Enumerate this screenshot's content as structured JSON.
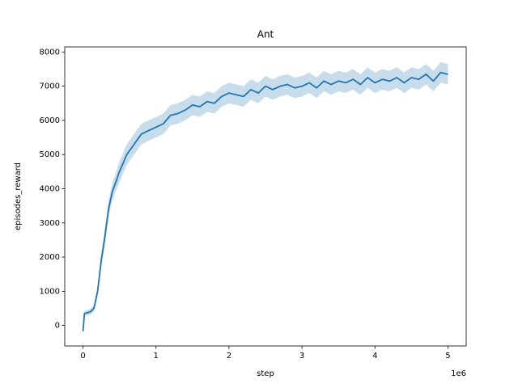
{
  "chart_data": {
    "type": "line",
    "title": "Ant",
    "x_label": "step",
    "y_label": "episodes_reward",
    "x_offset_label": "1e6",
    "x": [
      0,
      20000,
      100000,
      150000,
      200000,
      250000,
      300000,
      350000,
      400000,
      500000,
      600000,
      700000,
      800000,
      900000,
      1000000,
      1100000,
      1200000,
      1300000,
      1400000,
      1500000,
      1600000,
      1700000,
      1800000,
      1900000,
      2000000,
      2100000,
      2200000,
      2300000,
      2400000,
      2500000,
      2600000,
      2700000,
      2800000,
      2900000,
      3000000,
      3100000,
      3200000,
      3300000,
      3400000,
      3500000,
      3600000,
      3700000,
      3800000,
      3900000,
      4000000,
      4100000,
      4200000,
      4300000,
      4400000,
      4500000,
      4600000,
      4700000,
      4800000,
      4900000,
      5000000
    ],
    "series": [
      {
        "color": "#1f77b4",
        "values": [
          -170,
          350,
          400,
          500,
          1000,
          1900,
          2600,
          3400,
          3900,
          4500,
          5000,
          5300,
          5600,
          5700,
          5800,
          5900,
          6150,
          6200,
          6300,
          6450,
          6400,
          6550,
          6500,
          6700,
          6800,
          6750,
          6700,
          6900,
          6800,
          7000,
          6900,
          7000,
          7050,
          6950,
          7000,
          7100,
          6950,
          7150,
          7050,
          7150,
          7100,
          7200,
          7050,
          7250,
          7100,
          7200,
          7150,
          7250,
          7100,
          7250,
          7200,
          7350,
          7150,
          7400,
          7350
        ],
        "lower": [
          -220,
          270,
          320,
          400,
          850,
          1700,
          2350,
          3150,
          3650,
          4200,
          4700,
          5000,
          5300,
          5400,
          5500,
          5600,
          5850,
          5900,
          6000,
          6150,
          6100,
          6250,
          6200,
          6400,
          6500,
          6450,
          6400,
          6600,
          6500,
          6700,
          6600,
          6700,
          6750,
          6650,
          6700,
          6800,
          6650,
          6850,
          6750,
          6850,
          6800,
          6900,
          6750,
          6950,
          6800,
          6900,
          6850,
          6950,
          6800,
          6950,
          6900,
          7050,
          6850,
          7100,
          7050
        ],
        "upper": [
          -120,
          430,
          480,
          600,
          1150,
          2100,
          2850,
          3650,
          4150,
          4800,
          5300,
          5600,
          5900,
          6000,
          6100,
          6200,
          6450,
          6500,
          6600,
          6750,
          6700,
          6850,
          6800,
          7000,
          7100,
          7050,
          7000,
          7200,
          7100,
          7300,
          7200,
          7300,
          7350,
          7250,
          7300,
          7400,
          7250,
          7450,
          7350,
          7450,
          7400,
          7500,
          7350,
          7550,
          7400,
          7500,
          7450,
          7550,
          7400,
          7550,
          7500,
          7650,
          7450,
          7700,
          7650
        ]
      }
    ],
    "xlim": [
      -250000,
      5250000
    ],
    "xticks": [
      0,
      {
        "value": 1000000,
        "label": "1"
      },
      {
        "value": 2000000,
        "label": "2"
      },
      {
        "value": 3000000,
        "label": "3"
      },
      {
        "value": 4000000,
        "label": "4"
      },
      {
        "value": 5000000,
        "label": "5"
      }
    ],
    "ylim": [
      -600,
      8150
    ],
    "yticks": [
      0,
      1000,
      2000,
      3000,
      4000,
      5000,
      6000,
      7000,
      8000
    ],
    "grid": false
  }
}
